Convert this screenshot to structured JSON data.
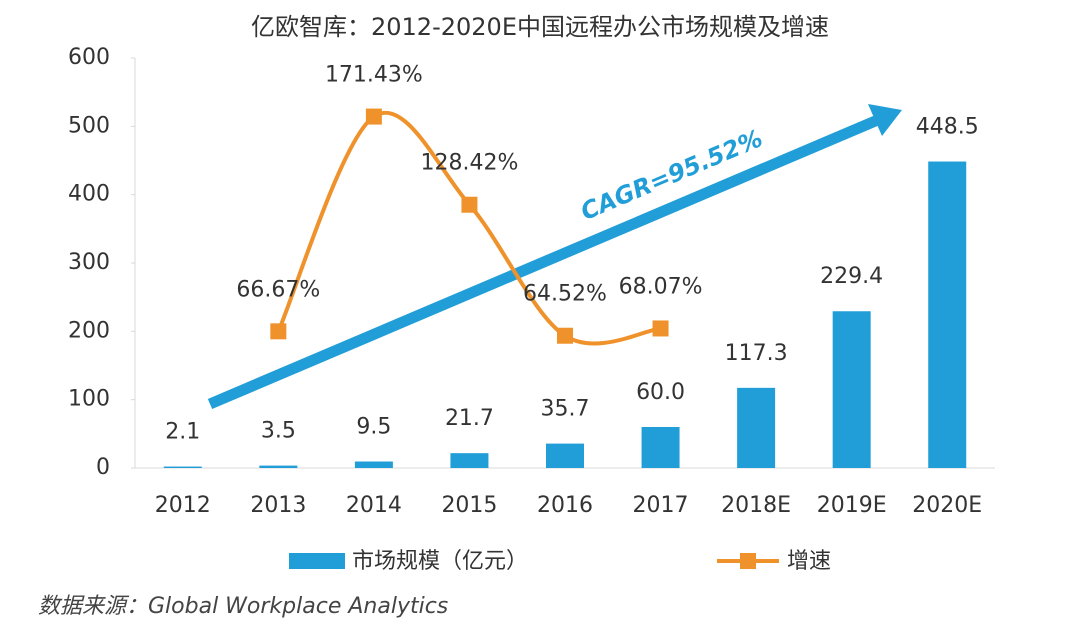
{
  "chart_data": {
    "type": "bar",
    "title": "亿欧智库：2012-2020E中国远程办公市场规模及增速",
    "categories": [
      "2012",
      "2013",
      "2014",
      "2015",
      "2016",
      "2017",
      "2018E",
      "2019E",
      "2020E"
    ],
    "series": [
      {
        "name": "市场规模（亿元）",
        "color": "#219ed8",
        "type": "bar",
        "values": [
          2.1,
          3.5,
          9.5,
          21.7,
          35.7,
          60.0,
          117.3,
          229.4,
          448.5
        ],
        "value_labels": [
          "2.1",
          "3.5",
          "9.5",
          "21.7",
          "35.7",
          "60.0",
          "117.3",
          "229.4",
          "448.5"
        ]
      },
      {
        "name": "增速",
        "color": "#f0922b",
        "type": "line",
        "axis": "y2",
        "values": [
          null,
          66.67,
          171.43,
          128.42,
          64.52,
          68.07,
          null,
          null,
          null
        ],
        "value_labels": [
          null,
          "66.67%",
          "171.43%",
          "128.42%",
          "64.52%",
          "68.07%",
          null,
          null,
          null
        ]
      }
    ],
    "ylim": [
      0,
      600
    ],
    "yticks": [
      0,
      100,
      200,
      300,
      400,
      500,
      600
    ],
    "y2lim": [
      0,
      200
    ],
    "annotations": [
      "CAGR=95.52%"
    ],
    "source": "数据来源：Global Workplace Analytics",
    "grid": false
  }
}
